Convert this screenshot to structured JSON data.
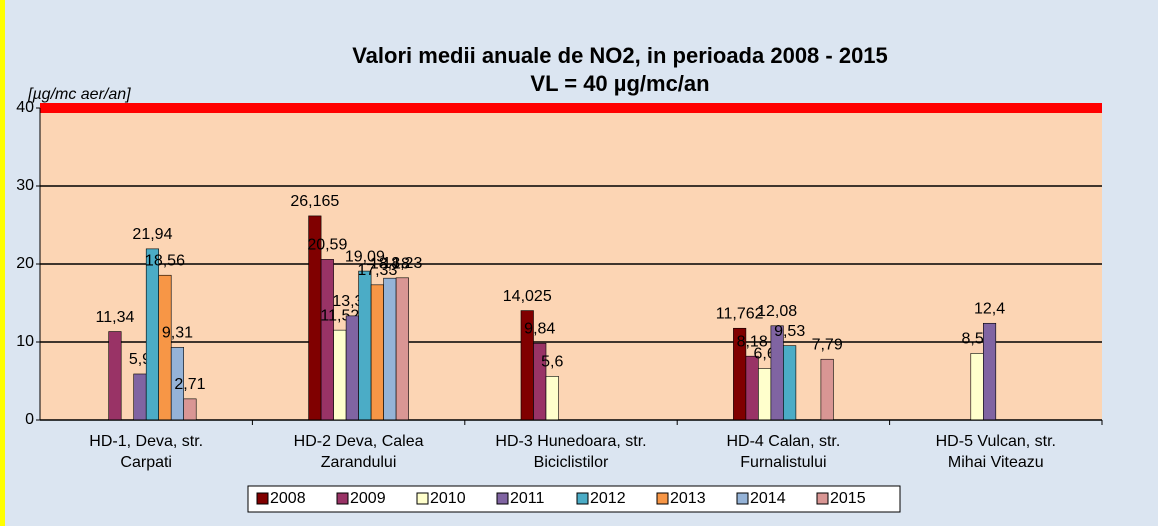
{
  "chart_data": {
    "type": "bar",
    "title": [
      "Valori medii anuale de NO2, in perioada 2008 - 2015",
      "VL = 40 µg/mc/an"
    ],
    "y_label": "[µg/mc aer/an]",
    "categories": [
      [
        "HD-1, Deva, str.",
        "Carpati"
      ],
      [
        "HD-2 Deva, Calea",
        "Zarandului"
      ],
      [
        "HD-3 Hunedoara, str.",
        "Biciclistilor"
      ],
      [
        "HD-4 Calan, str.",
        "Furnalistului"
      ],
      [
        "HD-5 Vulcan, str.",
        "Mihai Viteazu"
      ]
    ],
    "series": [
      {
        "name": "2008",
        "color": "#800000",
        "values": [
          null,
          26.165,
          14.025,
          11.762,
          null
        ],
        "value_labels": [
          null,
          "26,165",
          "14,025",
          "11,762",
          null
        ]
      },
      {
        "name": "2009",
        "color": "#993366",
        "values": [
          11.34,
          20.59,
          9.84,
          8.18,
          null
        ],
        "value_labels": [
          "11,34",
          "20,59",
          "9,84",
          "8,18",
          null
        ]
      },
      {
        "name": "2010",
        "color": "#ffffcc",
        "values": [
          null,
          11.52,
          5.6,
          6.6,
          8.54
        ],
        "value_labels": [
          null,
          "11,52",
          "5,6",
          "6,6",
          "8,54"
        ]
      },
      {
        "name": "2011",
        "color": "#8064a2",
        "values": [
          5.9,
          13.35,
          null,
          12.08,
          12.4
        ],
        "value_labels": [
          "5,9",
          "13,35",
          null,
          "12,08",
          "12,4"
        ]
      },
      {
        "name": "2012",
        "color": "#4bacc6",
        "values": [
          21.94,
          19.09,
          null,
          9.53,
          null
        ],
        "value_labels": [
          "21,94",
          "19,09",
          null,
          "9,53",
          null
        ]
      },
      {
        "name": "2013",
        "color": "#f79646",
        "values": [
          18.56,
          17.33,
          null,
          null,
          null
        ],
        "value_labels": [
          "18,56",
          "17,33",
          null,
          null,
          null
        ]
      },
      {
        "name": "2014",
        "color": "#95b3d7",
        "values": [
          9.31,
          18.18,
          null,
          null,
          null
        ],
        "value_labels": [
          "9,31",
          "18,18",
          null,
          null,
          null
        ]
      },
      {
        "name": "2015",
        "color": "#d99694",
        "values": [
          2.71,
          18.23,
          null,
          7.79,
          null
        ],
        "value_labels": [
          "2,71",
          "18,23",
          null,
          "7,79",
          null
        ]
      }
    ],
    "ylim": [
      0,
      40
    ],
    "yticks": [
      0,
      10,
      20,
      30,
      40
    ],
    "grid": true,
    "threshold": {
      "value": 40,
      "color": "#ff0000"
    },
    "legend": "bottom"
  }
}
